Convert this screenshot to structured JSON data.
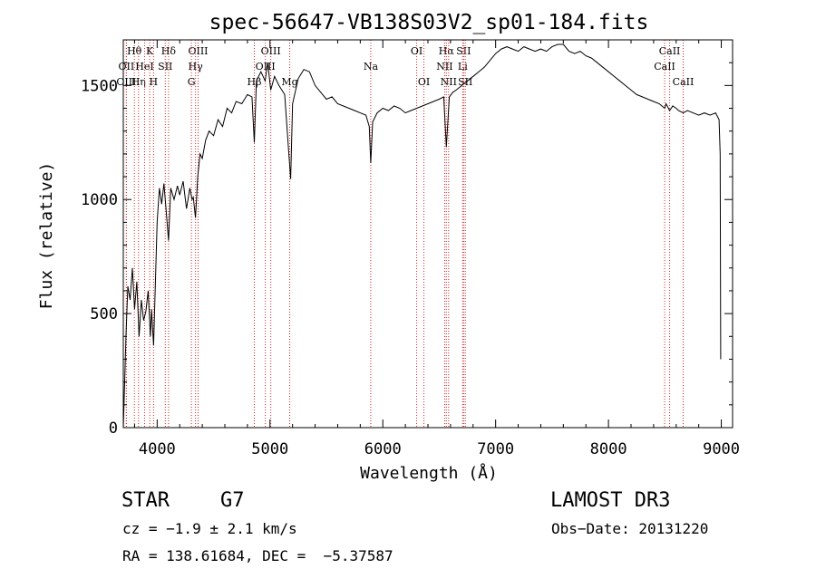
{
  "chart_data": {
    "type": "line",
    "title": "spec-56647-VB138S03V2_sp01-184.fits",
    "xlabel": "Wavelength (Å)",
    "ylabel": "Flux (relative)",
    "xlim": [
      3700,
      9100
    ],
    "ylim": [
      0,
      1700
    ],
    "xticks": [
      4000,
      5000,
      6000,
      7000,
      8000,
      9000
    ],
    "yticks": [
      0,
      500,
      1000,
      1500
    ],
    "series": [
      {
        "name": "flux",
        "points": [
          [
            3700,
            0
          ],
          [
            3712,
            200
          ],
          [
            3725,
            420
          ],
          [
            3740,
            620
          ],
          [
            3760,
            560
          ],
          [
            3780,
            700
          ],
          [
            3800,
            520
          ],
          [
            3820,
            640
          ],
          [
            3840,
            400
          ],
          [
            3860,
            560
          ],
          [
            3880,
            470
          ],
          [
            3900,
            510
          ],
          [
            3920,
            600
          ],
          [
            3940,
            400
          ],
          [
            3950,
            520
          ],
          [
            3968,
            360
          ],
          [
            3985,
            650
          ],
          [
            4000,
            900
          ],
          [
            4020,
            1050
          ],
          [
            4040,
            980
          ],
          [
            4060,
            1070
          ],
          [
            4080,
            950
          ],
          [
            4101,
            820
          ],
          [
            4120,
            1050
          ],
          [
            4150,
            1000
          ],
          [
            4180,
            1060
          ],
          [
            4200,
            1020
          ],
          [
            4230,
            1080
          ],
          [
            4260,
            960
          ],
          [
            4290,
            1050
          ],
          [
            4310,
            1000
          ],
          [
            4320,
            1010
          ],
          [
            4340,
            920
          ],
          [
            4360,
            1100
          ],
          [
            4380,
            1200
          ],
          [
            4400,
            1180
          ],
          [
            4430,
            1260
          ],
          [
            4460,
            1300
          ],
          [
            4500,
            1280
          ],
          [
            4540,
            1350
          ],
          [
            4580,
            1320
          ],
          [
            4620,
            1400
          ],
          [
            4660,
            1380
          ],
          [
            4700,
            1430
          ],
          [
            4750,
            1420
          ],
          [
            4800,
            1460
          ],
          [
            4840,
            1450
          ],
          [
            4861,
            1250
          ],
          [
            4880,
            1520
          ],
          [
            4920,
            1560
          ],
          [
            4957,
            1520
          ],
          [
            4980,
            1600
          ],
          [
            5007,
            1480
          ],
          [
            5040,
            1540
          ],
          [
            5080,
            1500
          ],
          [
            5130,
            1460
          ],
          [
            5167,
            1200
          ],
          [
            5183,
            1090
          ],
          [
            5200,
            1420
          ],
          [
            5250,
            1530
          ],
          [
            5300,
            1570
          ],
          [
            5350,
            1560
          ],
          [
            5400,
            1500
          ],
          [
            5450,
            1470
          ],
          [
            5500,
            1440
          ],
          [
            5550,
            1450
          ],
          [
            5600,
            1420
          ],
          [
            5650,
            1410
          ],
          [
            5700,
            1400
          ],
          [
            5750,
            1390
          ],
          [
            5800,
            1380
          ],
          [
            5850,
            1370
          ],
          [
            5880,
            1320
          ],
          [
            5893,
            1160
          ],
          [
            5910,
            1340
          ],
          [
            5950,
            1380
          ],
          [
            6000,
            1400
          ],
          [
            6050,
            1390
          ],
          [
            6100,
            1410
          ],
          [
            6150,
            1400
          ],
          [
            6200,
            1380
          ],
          [
            6250,
            1390
          ],
          [
            6300,
            1400
          ],
          [
            6350,
            1410
          ],
          [
            6400,
            1420
          ],
          [
            6450,
            1430
          ],
          [
            6500,
            1440
          ],
          [
            6540,
            1450
          ],
          [
            6563,
            1230
          ],
          [
            6590,
            1450
          ],
          [
            6620,
            1470
          ],
          [
            6650,
            1480
          ],
          [
            6700,
            1500
          ],
          [
            6750,
            1520
          ],
          [
            6800,
            1540
          ],
          [
            6850,
            1560
          ],
          [
            6900,
            1580
          ],
          [
            6950,
            1610
          ],
          [
            7000,
            1640
          ],
          [
            7050,
            1660
          ],
          [
            7100,
            1670
          ],
          [
            7150,
            1660
          ],
          [
            7200,
            1650
          ],
          [
            7250,
            1670
          ],
          [
            7300,
            1660
          ],
          [
            7350,
            1650
          ],
          [
            7400,
            1660
          ],
          [
            7450,
            1650
          ],
          [
            7500,
            1670
          ],
          [
            7550,
            1680
          ],
          [
            7600,
            1680
          ],
          [
            7650,
            1650
          ],
          [
            7700,
            1640
          ],
          [
            7750,
            1650
          ],
          [
            7800,
            1630
          ],
          [
            7850,
            1620
          ],
          [
            7900,
            1600
          ],
          [
            7950,
            1580
          ],
          [
            8000,
            1560
          ],
          [
            8050,
            1540
          ],
          [
            8100,
            1520
          ],
          [
            8150,
            1500
          ],
          [
            8200,
            1480
          ],
          [
            8250,
            1460
          ],
          [
            8300,
            1450
          ],
          [
            8350,
            1440
          ],
          [
            8400,
            1430
          ],
          [
            8450,
            1420
          ],
          [
            8498,
            1400
          ],
          [
            8510,
            1420
          ],
          [
            8542,
            1390
          ],
          [
            8570,
            1410
          ],
          [
            8600,
            1400
          ],
          [
            8620,
            1390
          ],
          [
            8662,
            1380
          ],
          [
            8700,
            1390
          ],
          [
            8750,
            1380
          ],
          [
            8800,
            1370
          ],
          [
            8850,
            1380
          ],
          [
            8900,
            1370
          ],
          [
            8950,
            1380
          ],
          [
            8980,
            1350
          ],
          [
            8990,
            1200
          ],
          [
            8995,
            300
          ]
        ]
      }
    ],
    "line_markers": [
      {
        "label": "Hθ",
        "x": 3798,
        "row": 0
      },
      {
        "label": "OII",
        "x": 3727,
        "row": 1
      },
      {
        "label": "OIII",
        "x": 3727,
        "row": 2
      },
      {
        "label": "Hη",
        "x": 3835,
        "row": 2
      },
      {
        "label": "HeI",
        "x": 3889,
        "row": 1
      },
      {
        "label": "K",
        "x": 3934,
        "row": 0
      },
      {
        "label": "SII",
        "x": 4072,
        "row": 1
      },
      {
        "label": "H",
        "x": 3968,
        "row": 2
      },
      {
        "label": "Hδ",
        "x": 4101,
        "row": 0
      },
      {
        "label": "OIII",
        "x": 4363,
        "row": 0
      },
      {
        "label": "Hγ",
        "x": 4340,
        "row": 1
      },
      {
        "label": "G",
        "x": 4304,
        "row": 2
      },
      {
        "label": "OIII",
        "x": 5007,
        "row": 0
      },
      {
        "label": "OIII",
        "x": 4959,
        "row": 1
      },
      {
        "label": "Hβ",
        "x": 4861,
        "row": 2
      },
      {
        "label": "Mg",
        "x": 5175,
        "row": 2
      },
      {
        "label": "Na",
        "x": 5893,
        "row": 1
      },
      {
        "label": "OI",
        "x": 6300,
        "row": 0
      },
      {
        "label": "OI",
        "x": 6364,
        "row": 2
      },
      {
        "label": "Hα",
        "x": 6563,
        "row": 0
      },
      {
        "label": "SII",
        "x": 6716,
        "row": 0
      },
      {
        "label": "NII",
        "x": 6548,
        "row": 1
      },
      {
        "label": "Li",
        "x": 6708,
        "row": 1
      },
      {
        "label": "NII",
        "x": 6583,
        "row": 2
      },
      {
        "label": "SII",
        "x": 6731,
        "row": 2
      },
      {
        "label": "CaII",
        "x": 8542,
        "row": 0
      },
      {
        "label": "CaII",
        "x": 8498,
        "row": 1
      },
      {
        "label": "CaII",
        "x": 8662,
        "row": 2
      }
    ]
  },
  "info": {
    "object_class": "STAR",
    "subclass": "G7",
    "survey": "LAMOST DR3",
    "cz": "cz = −1.9 ± 2.1 km/s",
    "obs_date": "Obs−Date: 20131220",
    "coords": "RA = 138.61684, DEC =  −5.37587"
  }
}
